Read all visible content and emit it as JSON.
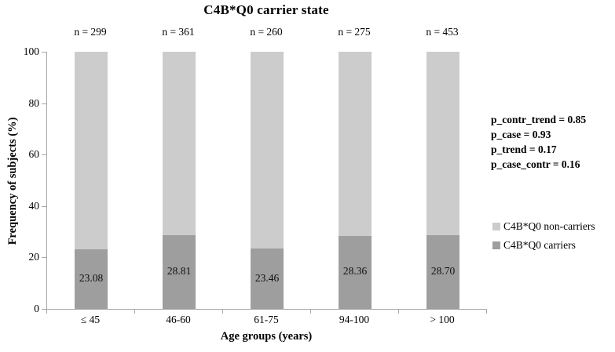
{
  "chart_data": {
    "type": "bar",
    "stacked": true,
    "title": "C4B*Q0 carrier state",
    "xlabel": "Age groups (years)",
    "ylabel": "Frequency of subjects (%)",
    "ylim": [
      0,
      100
    ],
    "yticks": [
      "0",
      "20",
      "40",
      "60",
      "80",
      "100"
    ],
    "grid": false,
    "categories": [
      "≤ 45",
      "46-60",
      "61-75",
      "94-100",
      "> 100"
    ],
    "n_labels": [
      "n = 299",
      "n = 361",
      "n = 260",
      "n = 275",
      "n = 453"
    ],
    "series": [
      {
        "name": "C4B*Q0 carriers",
        "color": "#9e9e9e",
        "values": [
          23.08,
          28.81,
          23.46,
          28.36,
          28.7
        ]
      },
      {
        "name": "C4B*Q0 non-carriers",
        "color": "#cccccc",
        "values": [
          76.92,
          71.19,
          76.54,
          71.64,
          71.3
        ]
      }
    ],
    "value_labels": [
      "23.08",
      "28.81",
      "23.46",
      "28.36",
      "28.70"
    ],
    "legend_position": "right",
    "legend": [
      {
        "label": "C4B*Q0 non-carriers",
        "color": "#cccccc"
      },
      {
        "label": "C4B*Q0 carriers",
        "color": "#9e9e9e"
      }
    ],
    "annotations": [
      "p_contr_trend = 0.85",
      "p_case = 0.93",
      "p_trend = 0.17",
      "p_case_contr = 0.16"
    ],
    "axis_color": "#a6a6a6"
  }
}
